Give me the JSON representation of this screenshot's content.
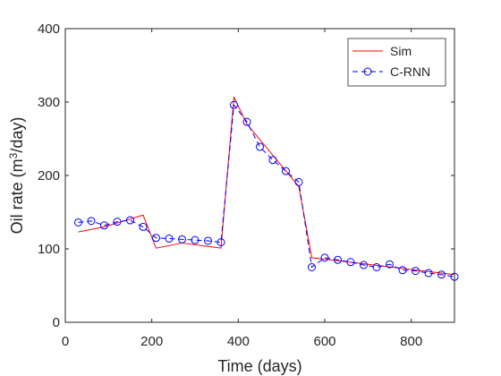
{
  "chart_data": {
    "type": "line",
    "title": "",
    "xlabel": "Time (days)",
    "ylabel": {
      "prefix": "Oil rate (m",
      "superscript": "3",
      "suffix": "/day)"
    },
    "xlim": [
      0,
      900
    ],
    "ylim": [
      0,
      400
    ],
    "xticks": [
      0,
      200,
      400,
      600,
      800
    ],
    "yticks": [
      0,
      100,
      200,
      300,
      400
    ],
    "grid": false,
    "legend_position": "top-right",
    "series": [
      {
        "name": "Sim",
        "color": "#ff0000",
        "style": "solid",
        "marker": "none",
        "x": [
          30,
          90,
          180,
          210,
          270,
          360,
          390,
          420,
          540,
          570,
          600,
          900
        ],
        "y": [
          123,
          130,
          146,
          101,
          108,
          101,
          307,
          270,
          185,
          88,
          86,
          65
        ]
      },
      {
        "name": "C-RNN",
        "color": "#0000ff",
        "style": "dashed",
        "marker": "circle",
        "x": [
          30,
          60,
          90,
          120,
          150,
          180,
          210,
          240,
          270,
          300,
          330,
          360,
          390,
          420,
          450,
          480,
          510,
          540,
          570,
          600,
          630,
          660,
          690,
          720,
          750,
          780,
          810,
          840,
          870,
          900
        ],
        "y": [
          136,
          138,
          132,
          137,
          139,
          130,
          115,
          114,
          113,
          112,
          111,
          109,
          296,
          273,
          239,
          221,
          206,
          191,
          75,
          88,
          85,
          82,
          78,
          75,
          79,
          71,
          70,
          67,
          65,
          62
        ]
      }
    ]
  }
}
